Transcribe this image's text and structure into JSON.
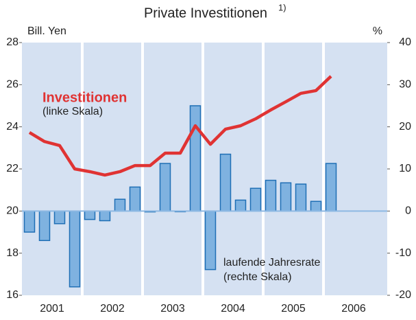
{
  "chart_data": {
    "type": "bar-line",
    "title": "Private Investitionen",
    "title_note": "1)",
    "y_label": "Bill. Yen",
    "y2_label": "%",
    "years": [
      "2001",
      "2002",
      "2003",
      "2004",
      "2005",
      "2006"
    ],
    "periods_per_year": 4,
    "ylim": [
      16,
      28
    ],
    "yticks": [
      16,
      18,
      20,
      22,
      24,
      26,
      28
    ],
    "y2lim": [
      -20,
      40
    ],
    "y2ticks": [
      -20,
      -10,
      0,
      10,
      20,
      30,
      40
    ],
    "series": [
      {
        "name": "Investitionen",
        "note": "(linke Skala)",
        "type": "line",
        "color": "#e03333",
        "values": [
          23.73,
          23.3,
          23.11,
          22.0,
          21.87,
          21.71,
          21.87,
          22.16,
          22.16,
          22.75,
          22.75,
          24.05,
          23.17,
          23.89,
          24.05,
          24.38,
          24.8,
          25.19,
          25.59,
          25.72,
          26.4,
          null,
          null,
          null
        ]
      },
      {
        "name": "laufende Jahresrate",
        "note": "(rechte Skala)",
        "type": "bar",
        "axis": "y2",
        "color": "#7fb2e0",
        "values": [
          -5,
          -7,
          -3,
          -18,
          -2,
          -2.3,
          2.8,
          5.7,
          -0.2,
          11.3,
          -0.1,
          25,
          -13.9,
          13.5,
          2.6,
          5.4,
          7.3,
          6.7,
          6.4,
          2.3,
          11.3,
          null,
          null,
          null
        ]
      }
    ]
  }
}
